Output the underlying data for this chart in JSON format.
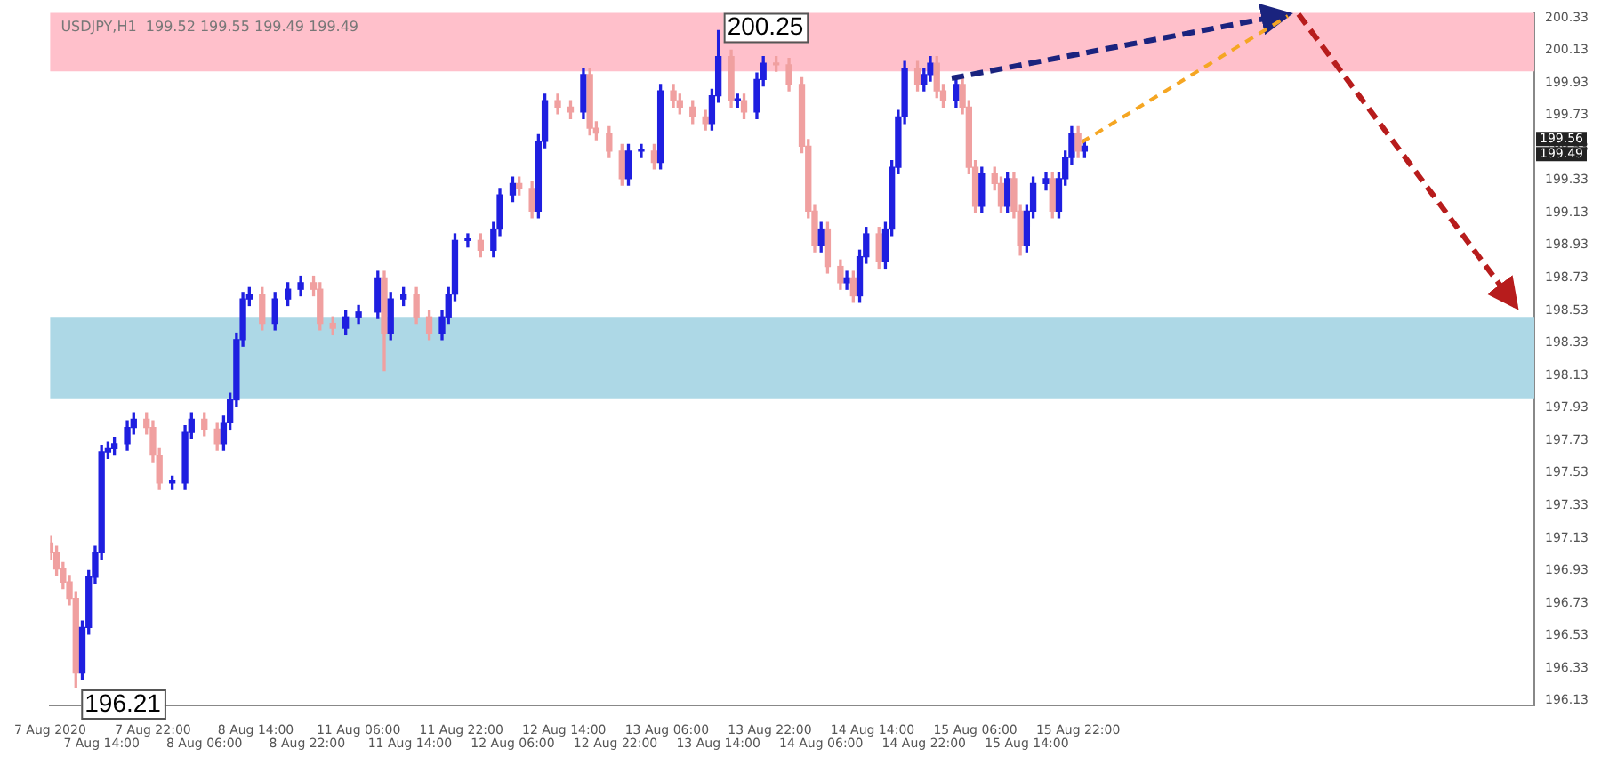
{
  "chart_data": {
    "type": "candlestick",
    "title": "USDJPY,H1  199.52 199.55 199.49 199.49",
    "categories": [
      "7 Aug 2020",
      null,
      null,
      null,
      null,
      null,
      null,
      null,
      "7 Aug 14:00",
      null,
      null,
      null,
      null,
      null,
      null,
      null,
      "7 Aug 22:00",
      null,
      null,
      null,
      null,
      null,
      null,
      null,
      "8 Aug 06:00",
      null,
      null,
      null,
      null,
      null,
      null,
      null,
      "8 Aug 14:00",
      null,
      null,
      null,
      null,
      null,
      null,
      null,
      "8 Aug 22:00",
      null,
      null,
      null,
      null,
      null,
      null,
      null,
      "11 Aug 06:00",
      null,
      null,
      null,
      null,
      null,
      null,
      null,
      "11 Aug 14:00",
      null,
      null,
      null,
      null,
      null,
      null,
      null,
      "11 Aug 22:00",
      null,
      null,
      null,
      null,
      null,
      null,
      null,
      "12 Aug 06:00",
      null,
      null,
      null,
      null,
      null,
      null,
      null,
      "12 Aug 14:00",
      null,
      null,
      null,
      null,
      null,
      null,
      null,
      "12 Aug 22:00",
      null,
      null,
      null,
      null,
      null,
      null,
      null,
      "13 Aug 06:00",
      null,
      null,
      null,
      null,
      null,
      null,
      null,
      "13 Aug 14:00",
      null,
      null,
      null,
      null,
      null,
      null,
      null,
      "13 Aug 22:00",
      null,
      null,
      null,
      null,
      null,
      null,
      null,
      "14 Aug 06:00",
      null,
      null,
      null,
      null,
      null,
      null,
      null,
      "14 Aug 14:00",
      null,
      null,
      null,
      null,
      null,
      null,
      null,
      "14 Aug 22:00",
      null,
      null,
      null,
      null,
      null,
      null,
      null,
      "15 Aug 06:00",
      null,
      null,
      null,
      null,
      null,
      null,
      null,
      "15 Aug 14:00",
      null,
      null,
      null,
      null,
      null,
      null,
      null,
      "15 Aug 22:00",
      null,
      null,
      null,
      null,
      null,
      null,
      null,
      null,
      null,
      null,
      null,
      null,
      null,
      null,
      null,
      null,
      null,
      null,
      null,
      null,
      null,
      null,
      null,
      null,
      null,
      null,
      null,
      null,
      null,
      null,
      null,
      null,
      null,
      null,
      null,
      null,
      null,
      null,
      null,
      null,
      null,
      null,
      null,
      null,
      null,
      null,
      null,
      null,
      null,
      null,
      null,
      null,
      null,
      null,
      null,
      null,
      null,
      null,
      null,
      null,
      null,
      null,
      null,
      null,
      null,
      null,
      null,
      null,
      null,
      null,
      null
    ],
    "ohlc": [
      [
        197.1,
        197.14,
        197.0,
        197.04
      ],
      [
        197.04,
        197.08,
        196.9,
        196.94
      ],
      [
        196.94,
        196.98,
        196.82,
        196.86
      ],
      [
        196.86,
        196.9,
        196.72,
        196.76
      ],
      [
        196.76,
        196.8,
        196.21,
        196.3
      ],
      [
        196.3,
        196.62,
        196.26,
        196.58
      ],
      [
        196.58,
        196.93,
        196.54,
        196.89
      ],
      [
        196.89,
        197.08,
        196.85,
        197.04
      ],
      [
        197.04,
        197.7,
        197.0,
        197.66
      ],
      [
        197.66,
        197.72,
        197.62,
        197.68
      ],
      [
        197.68,
        197.75,
        197.64,
        197.71
      ],
      null,
      [
        197.71,
        197.85,
        197.67,
        197.81
      ],
      [
        197.81,
        197.9,
        197.77,
        197.86
      ],
      null,
      [
        197.86,
        197.9,
        197.77,
        197.81
      ],
      [
        197.81,
        197.85,
        197.6,
        197.64
      ],
      [
        197.64,
        197.68,
        197.43,
        197.47
      ],
      null,
      [
        197.47,
        197.51,
        197.43,
        197.47
      ],
      null,
      [
        197.47,
        197.82,
        197.43,
        197.78
      ],
      [
        197.78,
        197.9,
        197.74,
        197.86
      ],
      null,
      [
        197.86,
        197.9,
        197.76,
        197.8
      ],
      null,
      [
        197.8,
        197.84,
        197.67,
        197.71
      ],
      [
        197.71,
        197.88,
        197.67,
        197.84
      ],
      [
        197.84,
        198.02,
        197.8,
        197.98
      ],
      [
        197.98,
        198.39,
        197.94,
        198.35
      ],
      [
        198.35,
        198.64,
        198.31,
        198.6
      ],
      [
        198.6,
        198.67,
        198.56,
        198.63
      ],
      null,
      [
        198.63,
        198.67,
        198.41,
        198.45
      ],
      null,
      [
        198.45,
        198.64,
        198.41,
        198.6
      ],
      null,
      [
        198.6,
        198.7,
        198.56,
        198.66
      ],
      null,
      [
        198.66,
        198.74,
        198.62,
        198.7
      ],
      null,
      [
        198.7,
        198.74,
        198.62,
        198.66
      ],
      [
        198.66,
        198.7,
        198.41,
        198.45
      ],
      null,
      [
        198.45,
        198.49,
        198.38,
        198.42
      ],
      null,
      [
        198.42,
        198.53,
        198.38,
        198.49
      ],
      null,
      [
        198.49,
        198.56,
        198.45,
        198.52
      ],
      null,
      null,
      [
        198.52,
        198.77,
        198.48,
        198.73
      ],
      [
        198.73,
        198.77,
        198.16,
        198.39
      ],
      [
        198.39,
        198.64,
        198.35,
        198.6
      ],
      null,
      [
        198.6,
        198.67,
        198.56,
        198.63
      ],
      null,
      [
        198.63,
        198.67,
        198.45,
        198.49
      ],
      null,
      [
        198.49,
        198.53,
        198.35,
        198.39
      ],
      null,
      [
        198.39,
        198.53,
        198.35,
        198.49
      ],
      [
        198.49,
        198.67,
        198.45,
        198.63
      ],
      [
        198.63,
        199.0,
        198.59,
        198.96
      ],
      null,
      [
        198.96,
        199.0,
        198.92,
        198.96
      ],
      null,
      [
        198.96,
        199.0,
        198.86,
        198.9
      ],
      null,
      [
        198.9,
        199.07,
        198.86,
        199.03
      ],
      [
        199.03,
        199.28,
        198.99,
        199.24
      ],
      null,
      [
        199.24,
        199.35,
        199.2,
        199.31
      ],
      [
        199.31,
        199.35,
        199.24,
        199.28
      ],
      null,
      [
        199.28,
        199.32,
        199.1,
        199.14
      ],
      [
        199.14,
        199.61,
        199.1,
        199.57
      ],
      [
        199.57,
        199.86,
        199.53,
        199.82
      ],
      null,
      [
        199.82,
        199.86,
        199.74,
        199.78
      ],
      null,
      [
        199.78,
        199.82,
        199.71,
        199.75
      ],
      null,
      [
        199.75,
        200.02,
        199.71,
        199.98
      ],
      [
        199.98,
        200.02,
        199.61,
        199.65
      ],
      [
        199.65,
        199.69,
        199.58,
        199.62
      ],
      null,
      [
        199.62,
        199.66,
        199.47,
        199.51
      ],
      null,
      [
        199.51,
        199.55,
        199.3,
        199.34
      ],
      [
        199.34,
        199.55,
        199.3,
        199.51
      ],
      null,
      [
        199.51,
        199.55,
        199.47,
        199.51
      ],
      null,
      [
        199.51,
        199.55,
        199.4,
        199.44
      ],
      [
        199.44,
        199.92,
        199.4,
        199.88
      ],
      null,
      [
        199.88,
        199.92,
        199.78,
        199.82
      ],
      [
        199.82,
        199.86,
        199.74,
        199.78
      ],
      null,
      [
        199.78,
        199.82,
        199.68,
        199.72
      ],
      null,
      [
        199.72,
        199.76,
        199.64,
        199.68
      ],
      [
        199.68,
        199.89,
        199.64,
        199.85
      ],
      [
        199.85,
        200.25,
        199.81,
        200.09
      ],
      null,
      [
        200.09,
        200.13,
        199.78,
        199.82
      ],
      [
        199.82,
        199.86,
        199.78,
        199.82
      ],
      [
        199.82,
        199.86,
        199.71,
        199.75
      ],
      null,
      [
        199.75,
        199.99,
        199.71,
        199.95
      ],
      [
        199.95,
        200.09,
        199.91,
        200.05
      ],
      null,
      [
        200.05,
        200.09,
        200.0,
        200.04
      ],
      null,
      [
        200.04,
        200.08,
        199.88,
        199.92
      ],
      null,
      [
        199.92,
        199.96,
        199.5,
        199.54
      ],
      [
        199.54,
        199.58,
        199.1,
        199.14
      ],
      [
        199.14,
        199.18,
        198.89,
        198.93
      ],
      [
        198.93,
        199.07,
        198.89,
        199.03
      ],
      [
        199.03,
        199.07,
        198.76,
        198.8
      ],
      null,
      [
        198.8,
        198.84,
        198.66,
        198.7
      ],
      [
        198.7,
        198.77,
        198.66,
        198.73
      ],
      [
        198.73,
        198.77,
        198.58,
        198.62
      ],
      [
        198.62,
        198.9,
        198.58,
        198.86
      ],
      [
        198.86,
        199.04,
        198.82,
        199.0
      ],
      null,
      [
        199.0,
        199.04,
        198.79,
        198.83
      ],
      [
        198.83,
        199.07,
        198.79,
        199.03
      ],
      [
        199.03,
        199.45,
        198.99,
        199.41
      ],
      [
        199.41,
        199.76,
        199.37,
        199.72
      ],
      [
        199.72,
        200.06,
        199.68,
        200.02
      ],
      null,
      [
        200.02,
        200.06,
        199.88,
        199.92
      ],
      [
        199.92,
        200.02,
        199.88,
        199.98
      ],
      [
        199.98,
        200.09,
        199.94,
        200.05
      ],
      [
        200.05,
        200.09,
        199.84,
        199.88
      ],
      [
        199.88,
        199.92,
        199.78,
        199.82
      ],
      null,
      [
        199.82,
        199.96,
        199.78,
        199.92
      ],
      [
        199.92,
        199.96,
        199.74,
        199.78
      ],
      [
        199.78,
        199.82,
        199.37,
        199.41
      ],
      [
        199.41,
        199.45,
        199.13,
        199.17
      ],
      [
        199.17,
        199.41,
        199.13,
        199.37
      ],
      null,
      [
        199.37,
        199.41,
        199.27,
        199.31
      ],
      [
        199.31,
        199.35,
        199.13,
        199.17
      ],
      [
        199.17,
        199.38,
        199.13,
        199.34
      ],
      [
        199.34,
        199.38,
        199.1,
        199.14
      ],
      [
        199.14,
        199.18,
        198.87,
        198.93
      ],
      [
        198.93,
        199.18,
        198.89,
        199.14
      ],
      [
        199.14,
        199.35,
        199.1,
        199.31
      ],
      null,
      [
        199.31,
        199.38,
        199.27,
        199.34
      ],
      [
        199.34,
        199.38,
        199.1,
        199.14
      ],
      [
        199.14,
        199.38,
        199.1,
        199.34
      ],
      [
        199.34,
        199.51,
        199.3,
        199.47
      ],
      [
        199.47,
        199.66,
        199.43,
        199.62
      ],
      [
        199.62,
        199.66,
        199.47,
        199.51
      ],
      [
        199.51,
        199.58,
        199.47,
        199.54
      ],
      null,
      null,
      null,
      null,
      null,
      null,
      null,
      null,
      null,
      null,
      null,
      null,
      null,
      null,
      null,
      null,
      null,
      null,
      null,
      null,
      null,
      null,
      null,
      null,
      null,
      null,
      null,
      null,
      null,
      null,
      null,
      null,
      null,
      null,
      null,
      null,
      null,
      null,
      null,
      null,
      null,
      null,
      null,
      null,
      null,
      null,
      null,
      null,
      null,
      null,
      null,
      null,
      null,
      null,
      null,
      null,
      null,
      null,
      null,
      null,
      null,
      null,
      null,
      null,
      null,
      null,
      null,
      null,
      null,
      null
    ],
    "colors": [
      "#f0a0a0",
      "#f0a0a0",
      "#f0a0a0",
      "#f0a0a0",
      "#f0a0a0",
      "#1f1fe0",
      "#1f1fe0",
      "#1f1fe0",
      "#1f1fe0",
      "#1f1fe0",
      "#1f1fe0",
      null,
      "#1f1fe0",
      "#1f1fe0",
      null,
      "#f0a0a0",
      "#f0a0a0",
      "#f0a0a0",
      null,
      "#1f1fe0",
      null,
      "#1f1fe0",
      "#1f1fe0",
      null,
      "#f0a0a0",
      null,
      "#f0a0a0",
      "#1f1fe0",
      "#1f1fe0",
      "#1f1fe0",
      "#1f1fe0",
      "#1f1fe0",
      null,
      "#f0a0a0",
      null,
      "#1f1fe0",
      null,
      "#1f1fe0",
      null,
      "#1f1fe0",
      null,
      "#f0a0a0",
      "#f0a0a0",
      null,
      "#f0a0a0",
      null,
      "#1f1fe0",
      null,
      "#1f1fe0",
      null,
      null,
      "#1f1fe0",
      "#f0a0a0",
      "#1f1fe0",
      null,
      "#1f1fe0",
      null,
      "#f0a0a0",
      null,
      "#f0a0a0",
      null,
      "#1f1fe0",
      "#1f1fe0",
      "#1f1fe0",
      null,
      "#1f1fe0",
      null,
      "#f0a0a0",
      null,
      "#1f1fe0",
      "#1f1fe0",
      null,
      "#1f1fe0",
      "#f0a0a0",
      null,
      "#f0a0a0",
      "#1f1fe0",
      "#1f1fe0",
      null,
      "#f0a0a0",
      null,
      "#f0a0a0",
      null,
      "#1f1fe0",
      "#f0a0a0",
      "#f0a0a0",
      null,
      "#f0a0a0",
      null,
      "#f0a0a0",
      "#1f1fe0",
      null,
      "#1f1fe0",
      null,
      "#f0a0a0",
      "#1f1fe0",
      null,
      "#f0a0a0",
      "#f0a0a0",
      null,
      "#f0a0a0",
      null,
      "#f0a0a0",
      "#1f1fe0",
      "#1f1fe0",
      null,
      "#f0a0a0",
      "#1f1fe0",
      "#f0a0a0",
      null,
      "#1f1fe0",
      "#1f1fe0",
      null,
      "#f0a0a0",
      null,
      "#f0a0a0",
      null,
      "#f0a0a0",
      "#f0a0a0",
      "#f0a0a0",
      "#1f1fe0",
      "#f0a0a0",
      null,
      "#f0a0a0",
      "#1f1fe0",
      "#f0a0a0",
      "#1f1fe0",
      "#1f1fe0",
      null,
      "#f0a0a0",
      "#1f1fe0",
      "#1f1fe0",
      "#1f1fe0",
      "#1f1fe0",
      null,
      "#f0a0a0",
      "#1f1fe0",
      "#1f1fe0",
      "#f0a0a0",
      "#f0a0a0",
      null,
      "#1f1fe0",
      "#f0a0a0",
      "#f0a0a0",
      "#f0a0a0",
      "#1f1fe0",
      null,
      "#f0a0a0",
      "#f0a0a0",
      "#1f1fe0",
      "#f0a0a0",
      "#f0a0a0",
      "#1f1fe0",
      "#1f1fe0",
      null,
      "#1f1fe0",
      "#f0a0a0",
      "#1f1fe0",
      "#1f1fe0",
      "#1f1fe0",
      "#f0a0a0",
      "#1f1fe0",
      null,
      null,
      null,
      null,
      null,
      null,
      null,
      null,
      null,
      null,
      null,
      null,
      null,
      null,
      null,
      null,
      null,
      null,
      null,
      null,
      null,
      null,
      null,
      null,
      null,
      null,
      null,
      null,
      null,
      null,
      null,
      null,
      null,
      null,
      null,
      null,
      null,
      null,
      null,
      null,
      null,
      null,
      null,
      null,
      null,
      null,
      null,
      null,
      null,
      null,
      null,
      null,
      null,
      null,
      null,
      null,
      null,
      null,
      null,
      null,
      null,
      null,
      null,
      null,
      null,
      null,
      null,
      null,
      null,
      null
    ],
    "ylim": [
      196.1,
      200.36
    ],
    "yticks": [
      196.13,
      196.33,
      196.53,
      196.73,
      196.93,
      197.13,
      197.33,
      197.53,
      197.73,
      197.93,
      198.13,
      198.33,
      198.53,
      198.73,
      198.93,
      199.13,
      199.33,
      199.53,
      199.73,
      199.93,
      200.13,
      200.33
    ],
    "bands": [
      {
        "axis": "y",
        "from": 200.0,
        "to": 200.36,
        "color": "#ffc0cb"
      },
      {
        "axis": "y",
        "from": 197.99,
        "to": 198.49,
        "color": "#add8e6"
      }
    ],
    "annotations": [
      "200.25",
      "196.21",
      "199.56",
      "199.49"
    ],
    "grid": false
  }
}
